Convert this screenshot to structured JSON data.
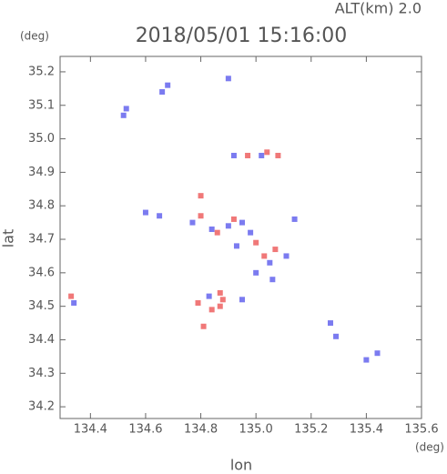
{
  "chart_data": {
    "type": "scatter",
    "alt_label": "ALT(km)  2.0",
    "title": "2018/05/01 15:16:00",
    "ylabel": "lat",
    "ylabel_unit": "(deg)",
    "xlabel": "lon",
    "xlabel_unit": "(deg)",
    "xlim": [
      134.29,
      135.6
    ],
    "ylim": [
      34.165,
      35.246
    ],
    "xticks": [
      134.4,
      134.6,
      134.8,
      {
        "value": 135,
        "label": "135.0"
      },
      135.2,
      135.4,
      135.6
    ],
    "yticks": [
      34.2,
      34.3,
      34.4,
      34.5,
      34.6,
      34.7,
      34.8,
      34.9,
      {
        "value": 35,
        "label": "35.0"
      },
      35.1,
      35.2
    ],
    "series": [
      {
        "color": "#7b7bf0",
        "x": [
          134.53,
          134.52,
          134.34,
          134.66,
          134.68,
          134.9,
          134.92,
          135.02,
          134.6,
          134.65,
          134.77,
          134.84,
          134.9,
          134.95,
          134.98,
          134.93,
          135.05,
          135.0,
          135.06,
          134.95,
          134.83,
          135.27,
          135.29,
          135.4,
          135.44,
          135.11,
          135.14
        ],
        "values": [
          35.09,
          35.07,
          34.51,
          35.14,
          35.16,
          35.18,
          34.95,
          34.95,
          34.78,
          34.77,
          34.75,
          34.73,
          34.74,
          34.75,
          34.72,
          34.68,
          34.63,
          34.6,
          34.58,
          34.52,
          34.53,
          34.45,
          34.41,
          34.34,
          34.36,
          34.65,
          34.76
        ]
      },
      {
        "color": "#f07878",
        "x": [
          134.33,
          134.8,
          134.87,
          134.88,
          134.84,
          134.81,
          135.04,
          135.08,
          134.97,
          134.8,
          134.86,
          135.03,
          135.07,
          134.92,
          135.0,
          134.87,
          134.79
        ],
        "values": [
          34.53,
          34.83,
          34.5,
          34.52,
          34.49,
          34.44,
          34.96,
          34.95,
          34.95,
          34.77,
          34.72,
          34.65,
          34.67,
          34.76,
          34.69,
          34.54,
          34.51
        ]
      }
    ]
  }
}
